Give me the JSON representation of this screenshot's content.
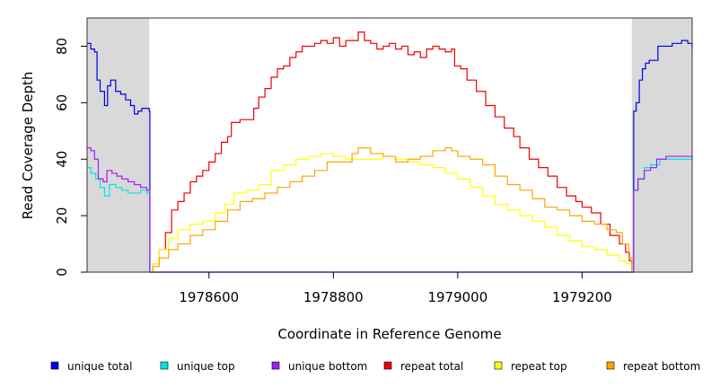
{
  "chart_data": {
    "type": "line",
    "title": "",
    "xlabel": "Coordinate in Reference Genome",
    "ylabel": "Read Coverage Depth",
    "xlim": [
      1978404,
      1979377
    ],
    "ylim": [
      0,
      90
    ],
    "x_ticks": [
      1978600,
      1978800,
      1979000,
      1979200
    ],
    "x_tick_labels": [
      "1978600",
      "1978800",
      "1979000",
      "1979200"
    ],
    "y_ticks": [
      0,
      20,
      40,
      60,
      80
    ],
    "y_tick_labels": [
      "0",
      "20",
      "40",
      "60",
      "80"
    ],
    "grid": false,
    "legend_position": "bottom",
    "shaded_regions": [
      {
        "x_start": 1978404,
        "x_end": 1978504,
        "color": "#d9d9d9"
      },
      {
        "x_start": 1979280,
        "x_end": 1979377,
        "color": "#d9d9d9"
      }
    ],
    "series": [
      {
        "name": "unique total",
        "color": "#0000ee",
        "points": [
          [
            1978404,
            81
          ],
          [
            1978410,
            79
          ],
          [
            1978416,
            78
          ],
          [
            1978420,
            68
          ],
          [
            1978425,
            64
          ],
          [
            1978432,
            59
          ],
          [
            1978437,
            66
          ],
          [
            1978442,
            68
          ],
          [
            1978450,
            64
          ],
          [
            1978458,
            63
          ],
          [
            1978466,
            61
          ],
          [
            1978474,
            59
          ],
          [
            1978480,
            56
          ],
          [
            1978486,
            57
          ],
          [
            1978492,
            58
          ],
          [
            1978500,
            58
          ],
          [
            1978504,
            57
          ],
          [
            1978505,
            0
          ],
          [
            1979282,
            0
          ],
          [
            1979283,
            57
          ],
          [
            1979287,
            60
          ],
          [
            1979292,
            68
          ],
          [
            1979297,
            72
          ],
          [
            1979302,
            74
          ],
          [
            1979308,
            75
          ],
          [
            1979315,
            75
          ],
          [
            1979322,
            80
          ],
          [
            1979335,
            80
          ],
          [
            1979345,
            81
          ],
          [
            1979360,
            82
          ],
          [
            1979370,
            81
          ],
          [
            1979377,
            79
          ]
        ]
      },
      {
        "name": "unique top",
        "color": "#00e5e5",
        "points": [
          [
            1978404,
            37
          ],
          [
            1978410,
            35
          ],
          [
            1978418,
            33
          ],
          [
            1978425,
            30
          ],
          [
            1978432,
            27
          ],
          [
            1978440,
            31
          ],
          [
            1978450,
            30
          ],
          [
            1978460,
            29
          ],
          [
            1978470,
            28
          ],
          [
            1978480,
            28
          ],
          [
            1978490,
            29
          ],
          [
            1978500,
            28
          ],
          [
            1978504,
            28
          ],
          [
            1978505,
            0
          ],
          [
            1979282,
            0
          ],
          [
            1979283,
            29
          ],
          [
            1979290,
            33
          ],
          [
            1979300,
            37
          ],
          [
            1979310,
            38
          ],
          [
            1979325,
            40
          ],
          [
            1979340,
            40
          ],
          [
            1979360,
            40
          ],
          [
            1979377,
            40
          ]
        ]
      },
      {
        "name": "unique bottom",
        "color": "#a020f0",
        "points": [
          [
            1978404,
            44
          ],
          [
            1978410,
            43
          ],
          [
            1978416,
            40
          ],
          [
            1978422,
            33
          ],
          [
            1978430,
            32
          ],
          [
            1978436,
            36
          ],
          [
            1978444,
            35
          ],
          [
            1978452,
            34
          ],
          [
            1978460,
            33
          ],
          [
            1978470,
            32
          ],
          [
            1978480,
            31
          ],
          [
            1978490,
            30
          ],
          [
            1978500,
            29
          ],
          [
            1978504,
            29
          ],
          [
            1978505,
            0
          ],
          [
            1979282,
            0
          ],
          [
            1979283,
            29
          ],
          [
            1979290,
            33
          ],
          [
            1979300,
            36
          ],
          [
            1979310,
            37
          ],
          [
            1979320,
            40
          ],
          [
            1979335,
            41
          ],
          [
            1979350,
            41
          ],
          [
            1979365,
            41
          ],
          [
            1979377,
            40
          ]
        ]
      },
      {
        "name": "repeat total",
        "color": "#ee0000",
        "points": [
          [
            1978504,
            0
          ],
          [
            1978510,
            3
          ],
          [
            1978520,
            8
          ],
          [
            1978530,
            14
          ],
          [
            1978540,
            22
          ],
          [
            1978550,
            25
          ],
          [
            1978560,
            28
          ],
          [
            1978570,
            32
          ],
          [
            1978580,
            34
          ],
          [
            1978590,
            36
          ],
          [
            1978600,
            39
          ],
          [
            1978610,
            42
          ],
          [
            1978620,
            46
          ],
          [
            1978630,
            48
          ],
          [
            1978636,
            53
          ],
          [
            1978650,
            54
          ],
          [
            1978665,
            54
          ],
          [
            1978672,
            58
          ],
          [
            1978680,
            62
          ],
          [
            1978690,
            65
          ],
          [
            1978700,
            69
          ],
          [
            1978710,
            72
          ],
          [
            1978720,
            73
          ],
          [
            1978730,
            76
          ],
          [
            1978740,
            78
          ],
          [
            1978750,
            80
          ],
          [
            1978760,
            80
          ],
          [
            1978770,
            81
          ],
          [
            1978780,
            82
          ],
          [
            1978790,
            81
          ],
          [
            1978800,
            83
          ],
          [
            1978810,
            80
          ],
          [
            1978820,
            82
          ],
          [
            1978830,
            82
          ],
          [
            1978840,
            85
          ],
          [
            1978850,
            82
          ],
          [
            1978860,
            81
          ],
          [
            1978870,
            79
          ],
          [
            1978880,
            80
          ],
          [
            1978890,
            81
          ],
          [
            1978900,
            79
          ],
          [
            1978910,
            80
          ],
          [
            1978920,
            77
          ],
          [
            1978930,
            78
          ],
          [
            1978940,
            76
          ],
          [
            1978950,
            79
          ],
          [
            1978960,
            80
          ],
          [
            1978970,
            79
          ],
          [
            1978980,
            78
          ],
          [
            1978990,
            79
          ],
          [
            1978995,
            73
          ],
          [
            1979005,
            72
          ],
          [
            1979015,
            68
          ],
          [
            1979030,
            64
          ],
          [
            1979045,
            59
          ],
          [
            1979060,
            55
          ],
          [
            1979075,
            51
          ],
          [
            1979090,
            48
          ],
          [
            1979100,
            44
          ],
          [
            1979115,
            40
          ],
          [
            1979130,
            37
          ],
          [
            1979145,
            34
          ],
          [
            1979160,
            30
          ],
          [
            1979175,
            27
          ],
          [
            1979190,
            25
          ],
          [
            1979200,
            23
          ],
          [
            1979215,
            21
          ],
          [
            1979230,
            17
          ],
          [
            1979245,
            13
          ],
          [
            1979260,
            10
          ],
          [
            1979270,
            7
          ],
          [
            1979276,
            4
          ],
          [
            1979280,
            0
          ]
        ]
      },
      {
        "name": "repeat top",
        "color": "#ffff00",
        "points": [
          [
            1978504,
            0
          ],
          [
            1978510,
            3
          ],
          [
            1978520,
            8
          ],
          [
            1978535,
            12
          ],
          [
            1978550,
            15
          ],
          [
            1978570,
            17
          ],
          [
            1978590,
            18
          ],
          [
            1978610,
            21
          ],
          [
            1978625,
            24
          ],
          [
            1978640,
            28
          ],
          [
            1978660,
            29
          ],
          [
            1978680,
            31
          ],
          [
            1978700,
            36
          ],
          [
            1978720,
            38
          ],
          [
            1978740,
            40
          ],
          [
            1978760,
            41
          ],
          [
            1978780,
            42
          ],
          [
            1978800,
            41
          ],
          [
            1978820,
            40
          ],
          [
            1978840,
            40
          ],
          [
            1978860,
            40
          ],
          [
            1978880,
            41
          ],
          [
            1978900,
            40
          ],
          [
            1978920,
            39
          ],
          [
            1978940,
            38
          ],
          [
            1978960,
            37
          ],
          [
            1978980,
            35
          ],
          [
            1979000,
            33
          ],
          [
            1979020,
            30
          ],
          [
            1979040,
            27
          ],
          [
            1979060,
            24
          ],
          [
            1979080,
            22
          ],
          [
            1979100,
            20
          ],
          [
            1979120,
            18
          ],
          [
            1979140,
            16
          ],
          [
            1979160,
            13
          ],
          [
            1979180,
            11
          ],
          [
            1979200,
            9
          ],
          [
            1979220,
            8
          ],
          [
            1979240,
            6
          ],
          [
            1979260,
            4
          ],
          [
            1979270,
            3
          ],
          [
            1979280,
            0
          ]
        ]
      },
      {
        "name": "repeat bottom",
        "color": "#ffa500",
        "points": [
          [
            1978504,
            0
          ],
          [
            1978510,
            2
          ],
          [
            1978520,
            5
          ],
          [
            1978535,
            8
          ],
          [
            1978550,
            10
          ],
          [
            1978570,
            13
          ],
          [
            1978590,
            15
          ],
          [
            1978610,
            18
          ],
          [
            1978630,
            22
          ],
          [
            1978650,
            25
          ],
          [
            1978670,
            26
          ],
          [
            1978690,
            28
          ],
          [
            1978710,
            30
          ],
          [
            1978730,
            32
          ],
          [
            1978750,
            34
          ],
          [
            1978770,
            36
          ],
          [
            1978790,
            39
          ],
          [
            1978810,
            39
          ],
          [
            1978830,
            42
          ],
          [
            1978840,
            44
          ],
          [
            1978860,
            42
          ],
          [
            1978880,
            41
          ],
          [
            1978900,
            39
          ],
          [
            1978920,
            40
          ],
          [
            1978940,
            41
          ],
          [
            1978960,
            43
          ],
          [
            1978980,
            44
          ],
          [
            1978990,
            43
          ],
          [
            1979000,
            41
          ],
          [
            1979020,
            40
          ],
          [
            1979040,
            38
          ],
          [
            1979060,
            34
          ],
          [
            1979080,
            31
          ],
          [
            1979100,
            29
          ],
          [
            1979120,
            26
          ],
          [
            1979140,
            23
          ],
          [
            1979160,
            22
          ],
          [
            1979180,
            20
          ],
          [
            1979200,
            18
          ],
          [
            1979220,
            17
          ],
          [
            1979240,
            15
          ],
          [
            1979255,
            14
          ],
          [
            1979265,
            10
          ],
          [
            1979275,
            5
          ],
          [
            1979280,
            0
          ]
        ]
      }
    ],
    "legend": [
      {
        "label": "unique total",
        "color": "#0000ee"
      },
      {
        "label": "unique top",
        "color": "#00e5e5"
      },
      {
        "label": "unique bottom",
        "color": "#a020f0"
      },
      {
        "label": "repeat total",
        "color": "#ee0000"
      },
      {
        "label": "repeat top",
        "color": "#ffff00"
      },
      {
        "label": "repeat bottom",
        "color": "#ffa500"
      }
    ]
  }
}
